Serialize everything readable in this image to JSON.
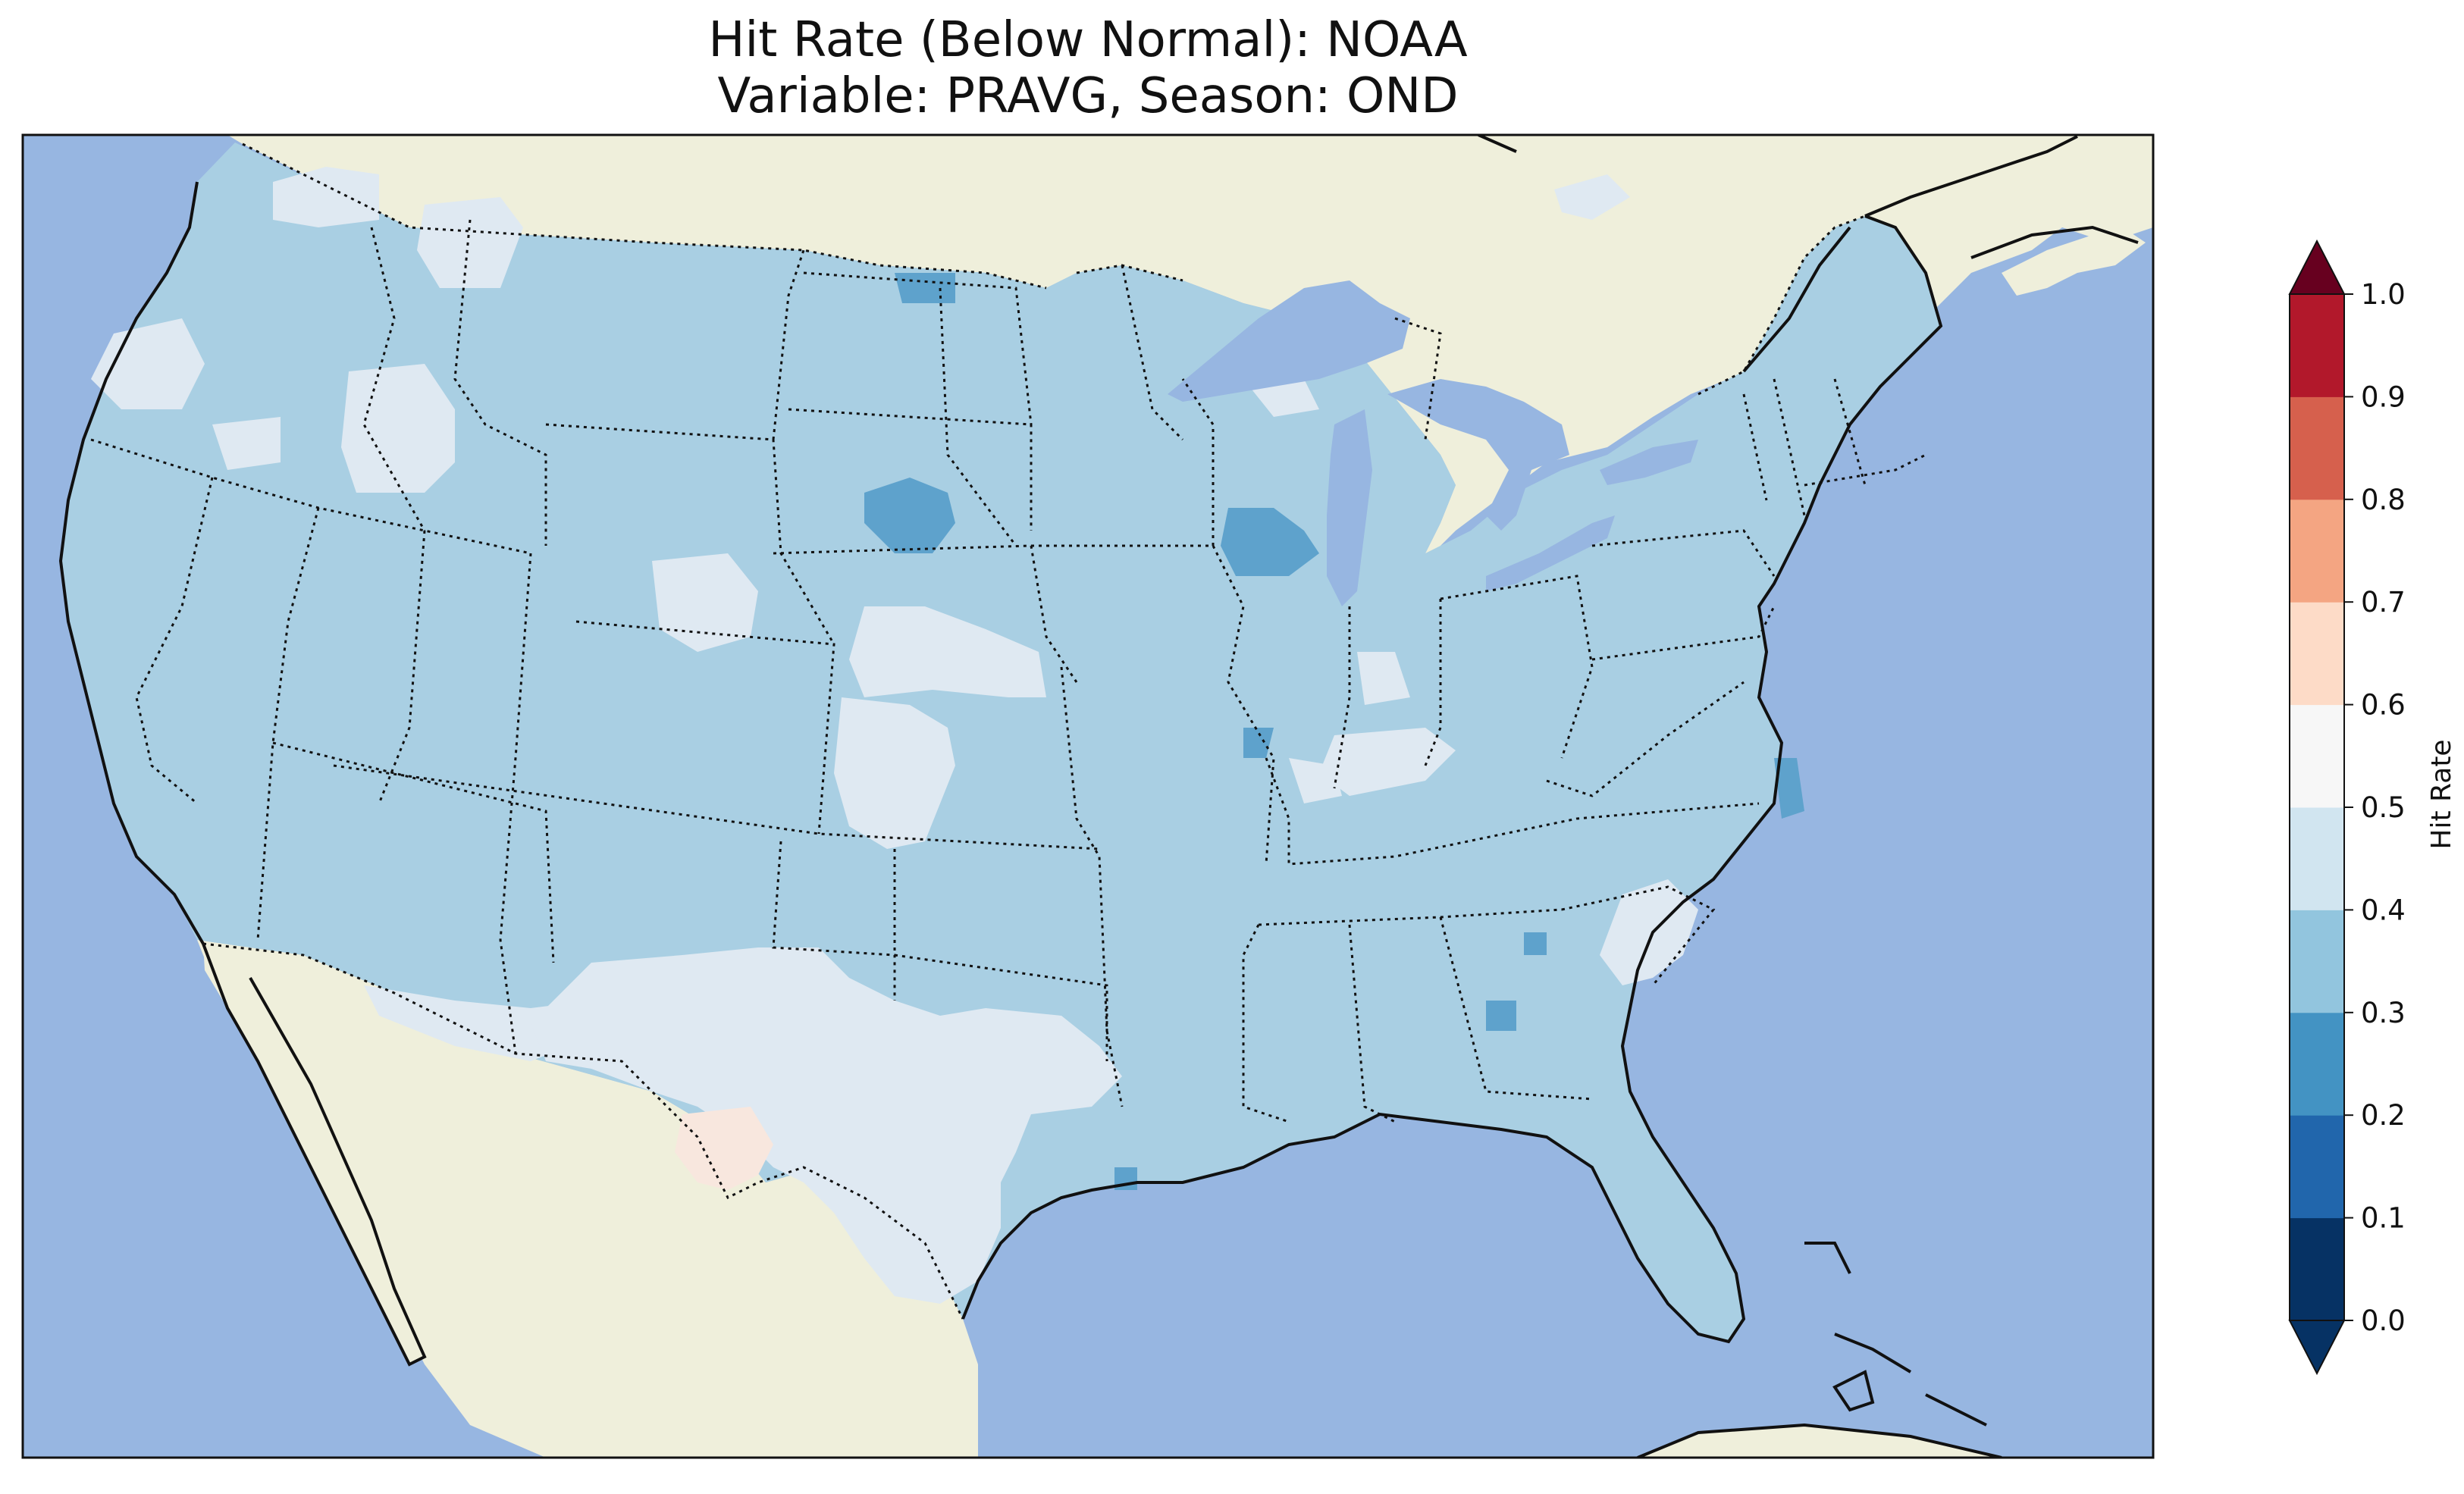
{
  "title": {
    "line1": "Hit Rate (Below Normal): NOAA",
    "line2": "Variable: PRAVG, Season: OND"
  },
  "colorbar": {
    "label": "Hit Rate",
    "ticks": [
      "0.0",
      "0.1",
      "0.2",
      "0.3",
      "0.4",
      "0.5",
      "0.6",
      "0.7",
      "0.8",
      "0.9",
      "1.0"
    ],
    "colors": [
      "#063264",
      "#2166ac",
      "#4393c3",
      "#92c5de",
      "#d1e5f0",
      "#f7f7f7",
      "#fddbc7",
      "#f4a582",
      "#d6604d",
      "#b2182b",
      "#67001f"
    ],
    "extend": "both"
  },
  "map": {
    "ocean_color": "#97b6e1",
    "land_color": "#efefdb",
    "lake_color": "#97b6e1",
    "dominant_value_color": "#a9cfe3",
    "region": "Contiguous United States",
    "projection": "Lambert Conformal"
  }
}
